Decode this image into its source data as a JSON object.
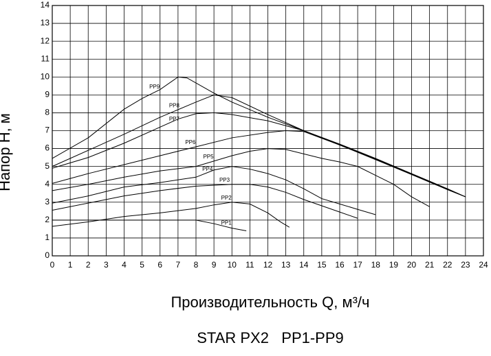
{
  "chart_data": {
    "type": "line",
    "title": "STAR PX2   PP1-PP9",
    "x_label": "Производительность Q, м³/ч",
    "y_label": "Напор Н, м",
    "xlim": [
      0,
      24
    ],
    "ylim": [
      0,
      14
    ],
    "xticks": [
      0,
      1,
      2,
      3,
      4,
      5,
      6,
      7,
      8,
      9,
      10,
      11,
      12,
      13,
      14,
      15,
      16,
      17,
      18,
      19,
      20,
      21,
      22,
      23,
      24
    ],
    "yticks": [
      0,
      1,
      2,
      3,
      4,
      5,
      6,
      7,
      8,
      9,
      10,
      11,
      12,
      13,
      14
    ],
    "grid": true,
    "series": [
      {
        "name": "PP1",
        "color": "#000000",
        "x": [
          0,
          2,
          4,
          6,
          8,
          9,
          10,
          10.8
        ],
        "values": [
          2.0,
          2.0,
          2.0,
          2.0,
          2.0,
          1.8,
          1.55,
          1.4
        ]
      },
      {
        "name": "PP2",
        "color": "#000000",
        "x": [
          0,
          2,
          4,
          6,
          8,
          9,
          10,
          11,
          12,
          12.7,
          13.2
        ],
        "values": [
          1.65,
          1.9,
          2.2,
          2.4,
          2.65,
          2.85,
          3.0,
          2.9,
          2.4,
          1.9,
          1.6
        ]
      },
      {
        "name": "PP3",
        "color": "#000000",
        "x": [
          0,
          2,
          4,
          6,
          8,
          10,
          11,
          12,
          13,
          14,
          15,
          16,
          17
        ],
        "values": [
          2.55,
          2.95,
          3.35,
          3.65,
          3.9,
          4.0,
          4.0,
          3.85,
          3.55,
          3.15,
          2.8,
          2.45,
          2.1
        ]
      },
      {
        "name": "PP4",
        "color": "#000000",
        "x": [
          0,
          2,
          4,
          6,
          8,
          9,
          10,
          11,
          12,
          13,
          14,
          15,
          16,
          17,
          18
        ],
        "values": [
          2.95,
          3.35,
          3.85,
          4.1,
          4.4,
          4.8,
          5.0,
          4.85,
          4.6,
          4.25,
          3.75,
          3.2,
          2.9,
          2.6,
          2.3
        ]
      },
      {
        "name": "PP5",
        "color": "#000000",
        "x": [
          0,
          2,
          4,
          6,
          8,
          10,
          11,
          12,
          13,
          14,
          15,
          16,
          17,
          18,
          19,
          20,
          21
        ],
        "values": [
          3.65,
          4.0,
          4.4,
          4.75,
          5.0,
          5.6,
          5.85,
          6.0,
          5.95,
          5.7,
          5.45,
          5.25,
          5.0,
          4.5,
          4.0,
          3.3,
          2.75
        ]
      },
      {
        "name": "PP6",
        "color": "#000000",
        "x": [
          0,
          2,
          4,
          6,
          8,
          10,
          12,
          13,
          14,
          16,
          18,
          20,
          22,
          23
        ],
        "values": [
          4.05,
          4.6,
          5.1,
          5.6,
          6.1,
          6.6,
          6.9,
          7.0,
          6.95,
          6.2,
          5.38,
          4.55,
          3.72,
          3.3
        ]
      },
      {
        "name": "PP7",
        "color": "#000000",
        "x": [
          0,
          2,
          4,
          6,
          7,
          8,
          9,
          10,
          12,
          14,
          16,
          18,
          20,
          22,
          23
        ],
        "values": [
          4.9,
          5.5,
          6.3,
          7.2,
          7.65,
          7.95,
          8.0,
          7.9,
          7.55,
          7.0,
          6.2,
          5.4,
          4.55,
          3.7,
          3.3
        ]
      },
      {
        "name": "PP8",
        "color": "#000000",
        "x": [
          0,
          2,
          4,
          6,
          8,
          9,
          10,
          12,
          14,
          16,
          18,
          20,
          22,
          23
        ],
        "values": [
          5.0,
          5.9,
          6.8,
          7.75,
          8.6,
          9.0,
          8.85,
          7.9,
          7.0,
          6.25,
          5.45,
          4.6,
          3.75,
          3.3
        ]
      },
      {
        "name": "PP9",
        "color": "#000000",
        "x": [
          0,
          2,
          4,
          5,
          6,
          7,
          7.5,
          9,
          10,
          12,
          14,
          16,
          18,
          20,
          22,
          23
        ],
        "values": [
          5.45,
          6.6,
          8.2,
          8.8,
          9.3,
          10.0,
          9.95,
          9.1,
          8.6,
          7.75,
          7.0,
          6.22,
          5.42,
          4.58,
          3.74,
          3.3
        ]
      }
    ]
  }
}
